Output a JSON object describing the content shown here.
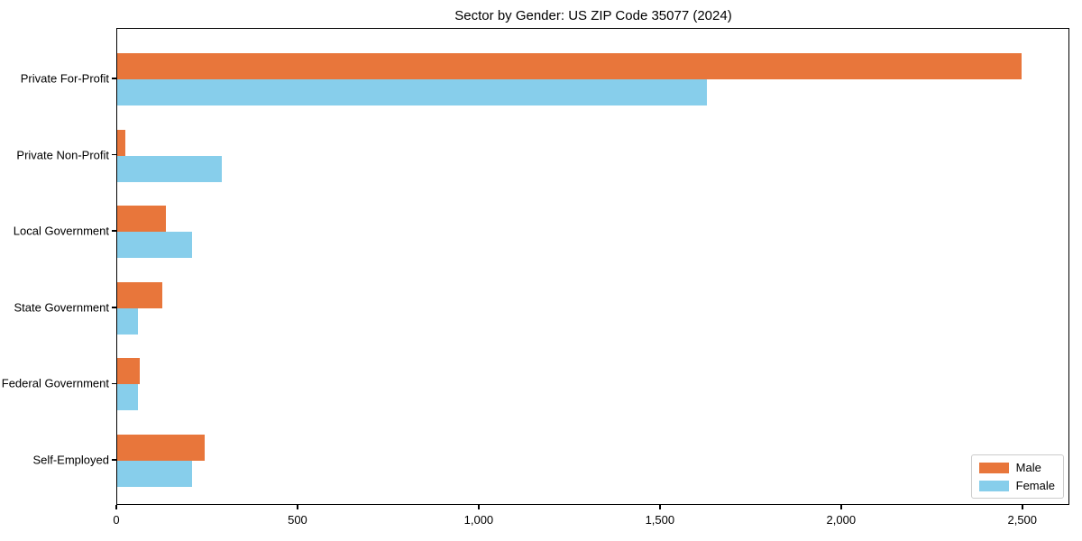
{
  "chart_data": {
    "type": "bar",
    "orientation": "horizontal",
    "title": "Sector by Gender: US ZIP Code 35077 (2024)",
    "xlabel": "",
    "ylabel": "",
    "categories": [
      "Private For-Profit",
      "Private Non-Profit",
      "Local Government",
      "State Government",
      "Federal Government",
      "Self-Employed"
    ],
    "series": [
      {
        "name": "Male",
        "color": "#E8763B",
        "values": [
          2496,
          23,
          133,
          124,
          61,
          240
        ]
      },
      {
        "name": "Female",
        "color": "#87CEEB",
        "values": [
          1626,
          288,
          207,
          56,
          56,
          207
        ]
      }
    ],
    "xlim": [
      0,
      2630
    ],
    "xticks": [
      0,
      500,
      1000,
      1500,
      2000,
      2500
    ],
    "xtick_labels": [
      "0",
      "500",
      "1,000",
      "1,500",
      "2,000",
      "2,500"
    ],
    "grid": false,
    "legend": {
      "position": "lower right"
    },
    "colors": {
      "background": "#ffffff",
      "spine": "#000000",
      "text": "#000000",
      "legend_border": "#cccccc"
    }
  }
}
